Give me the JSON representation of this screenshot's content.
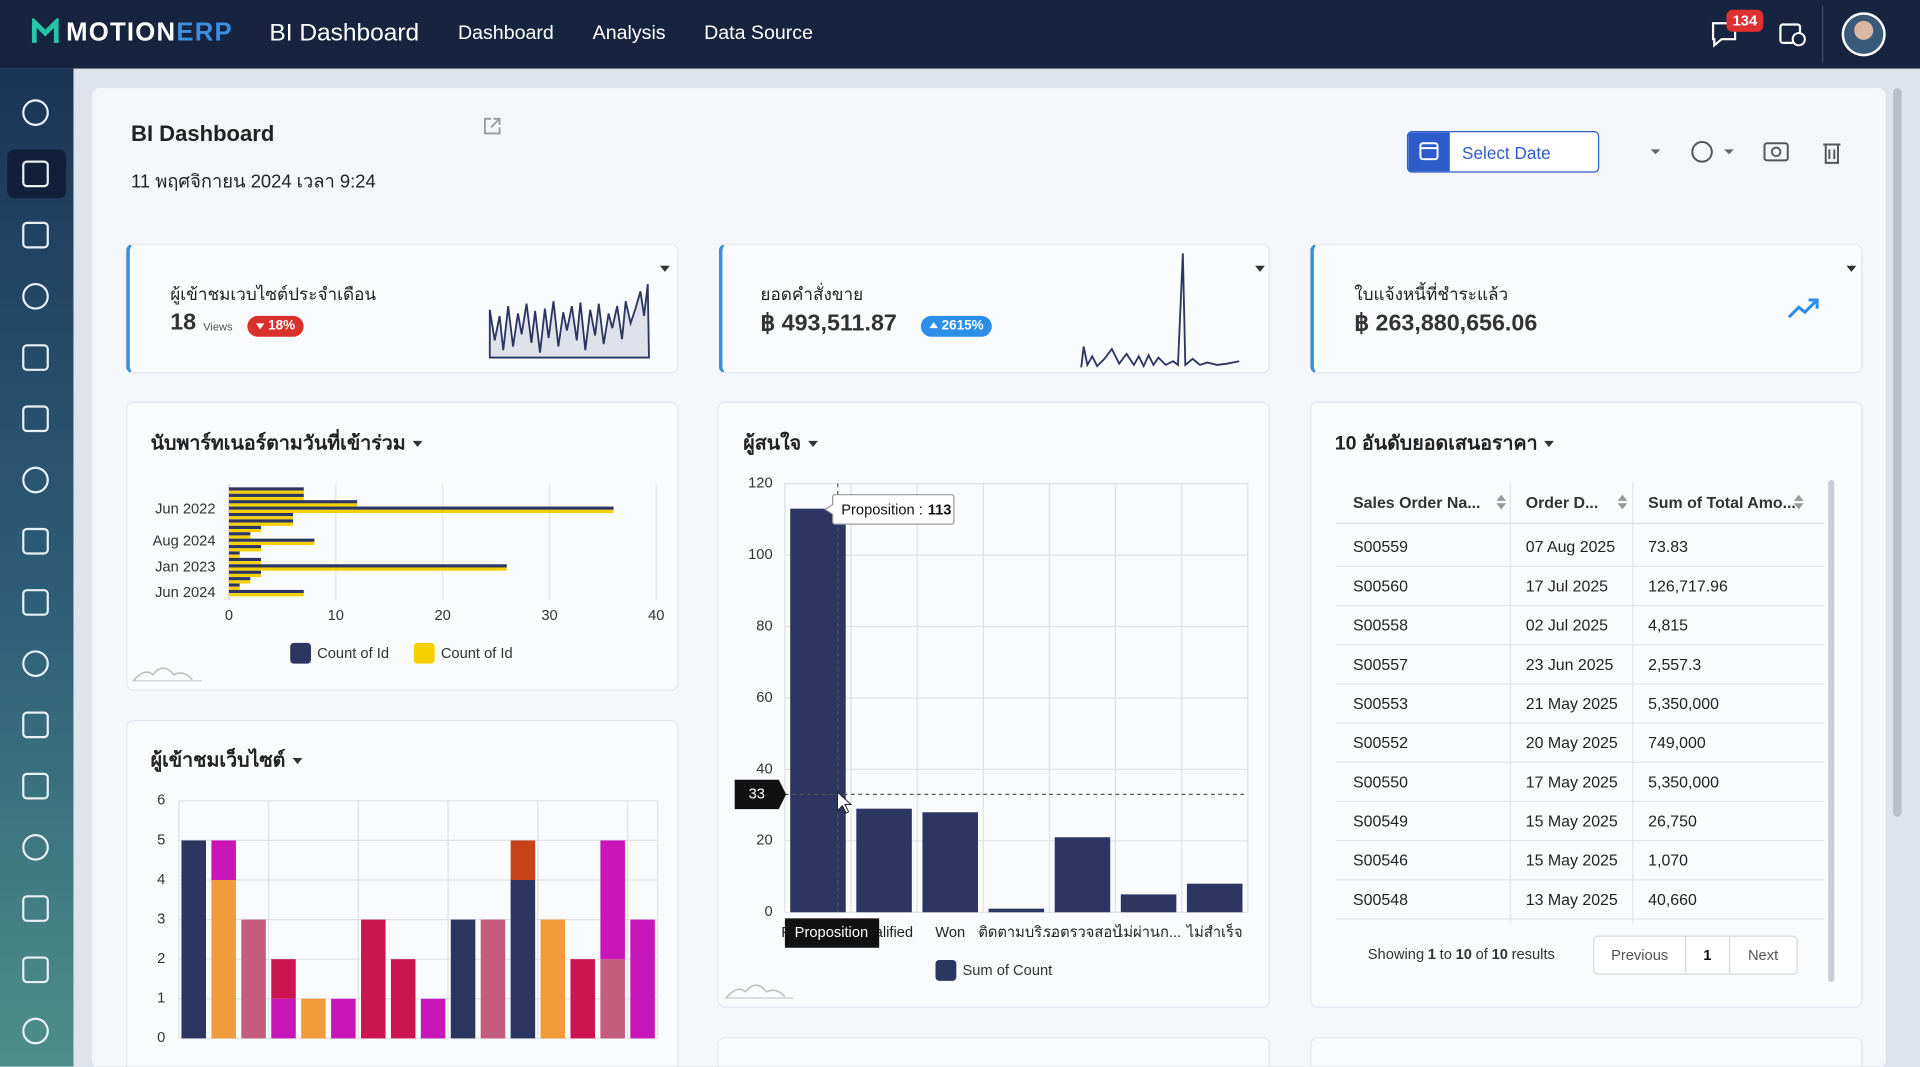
{
  "app": {
    "logo_main": "MOTION",
    "logo_accent": "ERP",
    "section": "BI Dashboard",
    "nav": [
      "Dashboard",
      "Analysis",
      "Data Source"
    ],
    "notification_count": "134"
  },
  "dashboard": {
    "title": "BI Dashboard",
    "timestamp": "11 พฤศจิกายน 2024 เวลา 9:24",
    "date_picker": "Select Date"
  },
  "kpis": [
    {
      "title": "ผู้เข้าชมเวบไซต์ประจำเดือน",
      "value": "18",
      "unit": "Views",
      "change": "18%"
    },
    {
      "title": "ยอดคำสั่งขาย",
      "value": "฿ 493,511.87",
      "change": "2615%"
    },
    {
      "title": "ใบแจ้งหนี้ที่ชำระแล้ว",
      "value": "฿ 263,880,656.06"
    }
  ],
  "partner_chart": {
    "type": "bar",
    "orientation": "horizontal",
    "title": "นับพาร์ทเนอร์ตามวันที่เข้าร่วม",
    "categories": [
      null,
      null,
      null,
      "Jun 2022",
      null,
      null,
      null,
      null,
      "Aug 2024",
      null,
      null,
      null,
      "Jan 2023",
      null,
      null,
      null,
      "Jun 2024"
    ],
    "series": [
      {
        "name": "Count of Id",
        "color": "#2d3561",
        "values": [
          7,
          7,
          12,
          36,
          6,
          6,
          3,
          2,
          8,
          3,
          1,
          3,
          26,
          3,
          2,
          1,
          7
        ]
      },
      {
        "name": "Count of Id",
        "color": "#f5d000",
        "values": [
          7,
          7,
          12,
          36,
          6,
          6,
          3,
          2,
          8,
          3,
          1,
          3,
          26,
          3,
          2,
          1,
          7
        ]
      }
    ],
    "xlim": [
      0,
      40
    ],
    "xticks": [
      0,
      10,
      20,
      30,
      40
    ],
    "grid": true
  },
  "visitors_chart": {
    "type": "bar",
    "stacked": true,
    "title": "ผู้เข้าชมเว็บไซต์",
    "categories": [
      null,
      null,
      null,
      null,
      null,
      null,
      null,
      null,
      null,
      null,
      null,
      null,
      null,
      null,
      null,
      null
    ],
    "series": [
      {
        "color": "#2d3561",
        "values": [
          5,
          0,
          0,
          0,
          0,
          0,
          0,
          0,
          0,
          3,
          0,
          4,
          0,
          0,
          0,
          0
        ]
      },
      {
        "color": "#f09c3a",
        "values": [
          0,
          4,
          0,
          0,
          1,
          0,
          0,
          0,
          0,
          0,
          0,
          0,
          3,
          0,
          0,
          0
        ]
      },
      {
        "color": "#c45c7e",
        "values": [
          0,
          0,
          3,
          0,
          0,
          0,
          0,
          0,
          0,
          0,
          3,
          0,
          0,
          0,
          2,
          0
        ]
      },
      {
        "color": "#c916b8",
        "values": [
          0,
          1,
          0,
          1,
          0,
          1,
          0,
          0,
          1,
          0,
          0,
          0,
          0,
          0,
          3,
          3
        ]
      },
      {
        "color": "#cc1450",
        "values": [
          0,
          0,
          0,
          1,
          0,
          0,
          3,
          2,
          0,
          0,
          0,
          0,
          0,
          2,
          0,
          0
        ]
      },
      {
        "color": "#c8421a",
        "values": [
          0,
          0,
          0,
          0,
          0,
          0,
          0,
          0,
          0,
          0,
          0,
          1,
          0,
          0,
          0,
          0
        ]
      }
    ],
    "ylim": [
      0,
      6
    ],
    "yticks": [
      0,
      1,
      2,
      3,
      4,
      5,
      6
    ],
    "grid": true
  },
  "leads_chart": {
    "type": "bar",
    "title": "ผู้สนใจ",
    "categories": [
      "Proposition",
      "Qualified",
      "Won",
      "ติดตามบริ...",
      "รอตรวจสอบ",
      "ไม่ผ่านก...",
      "ไม่สำเร็จ"
    ],
    "series": [
      {
        "name": "Sum of Count",
        "color": "#2d3561",
        "values": [
          113,
          29,
          28,
          1,
          21,
          5,
          8
        ]
      }
    ],
    "ylim": [
      0,
      120
    ],
    "yticks": [
      0,
      20,
      40,
      60,
      80,
      100,
      120
    ],
    "grid": true,
    "tooltip": {
      "label": "Proposition :",
      "value": 113
    },
    "crosshair": {
      "y": 33,
      "category": "Proposition"
    }
  },
  "quotes_table": {
    "title": "10 อันดับยอดเสนอราคา",
    "columns": [
      "Sales Order Na...",
      "Order D...",
      "Sum of Total Amo..."
    ],
    "rows": [
      [
        "S00559",
        "07 Aug 2025",
        "73.83"
      ],
      [
        "S00560",
        "17 Jul 2025",
        "126,717.96"
      ],
      [
        "S00558",
        "02 Jul 2025",
        "4,815"
      ],
      [
        "S00557",
        "23 Jun 2025",
        "2,557.3"
      ],
      [
        "S00553",
        "21 May 2025",
        "5,350,000"
      ],
      [
        "S00552",
        "20 May 2025",
        "749,000"
      ],
      [
        "S00550",
        "17 May 2025",
        "5,350,000"
      ],
      [
        "S00549",
        "15 May 2025",
        "26,750"
      ],
      [
        "S00546",
        "15 May 2025",
        "1,070"
      ],
      [
        "S00548",
        "13 May 2025",
        "40,660"
      ]
    ],
    "footer": [
      "Showing",
      "1",
      "to",
      "10",
      "of",
      "10",
      "results"
    ],
    "pagination": [
      "Previous",
      "1",
      "Next"
    ]
  }
}
